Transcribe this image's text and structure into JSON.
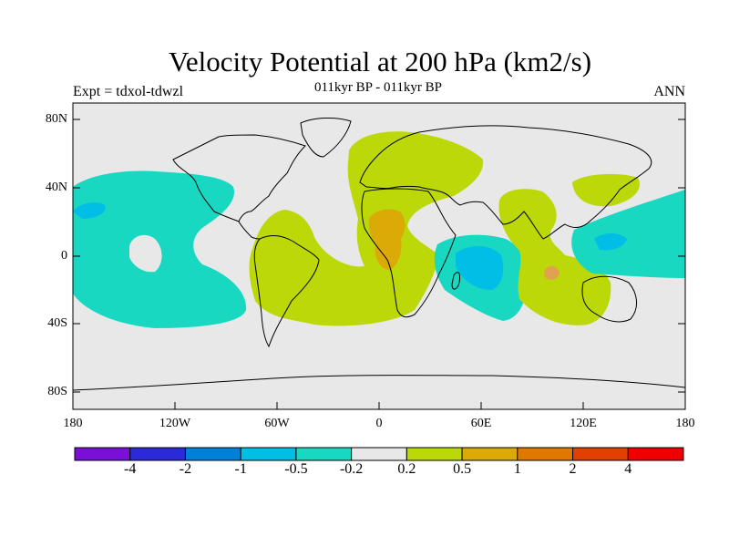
{
  "title": "Velocity Potential at 200 hPa (km2/s)",
  "subtitle_left": "Expt = tdxol-tdwzl",
  "subtitle_center": "011kyr BP - 011kyr BP",
  "subtitle_right": "ANN",
  "lat_ticks": [
    "80N",
    "40N",
    "0",
    "40S",
    "80S"
  ],
  "lon_ticks": [
    "180",
    "120W",
    "60W",
    "0",
    "60E",
    "120E",
    "180"
  ],
  "colorbar": {
    "labels": [
      "-4",
      "-2",
      "-1",
      "-0.5",
      "-0.2",
      "0.2",
      "0.5",
      "1",
      "2",
      "4"
    ],
    "colors": [
      "#7a10d8",
      "#2a2ad8",
      "#0080d8",
      "#00bee6",
      "#19d8c2",
      "#e8e8e8",
      "#bcd808",
      "#dcaa06",
      "#e07800",
      "#e04000",
      "#ee0000"
    ]
  },
  "map_colors": {
    "background": "#e8e8e8",
    "positive_weak": "#bcd808",
    "positive_mod": "#dcaa06",
    "positive_strong": "#e07800",
    "negative_weak": "#19d8c2",
    "negative_mod": "#00bee6",
    "negative_strong": "#0080d8"
  }
}
